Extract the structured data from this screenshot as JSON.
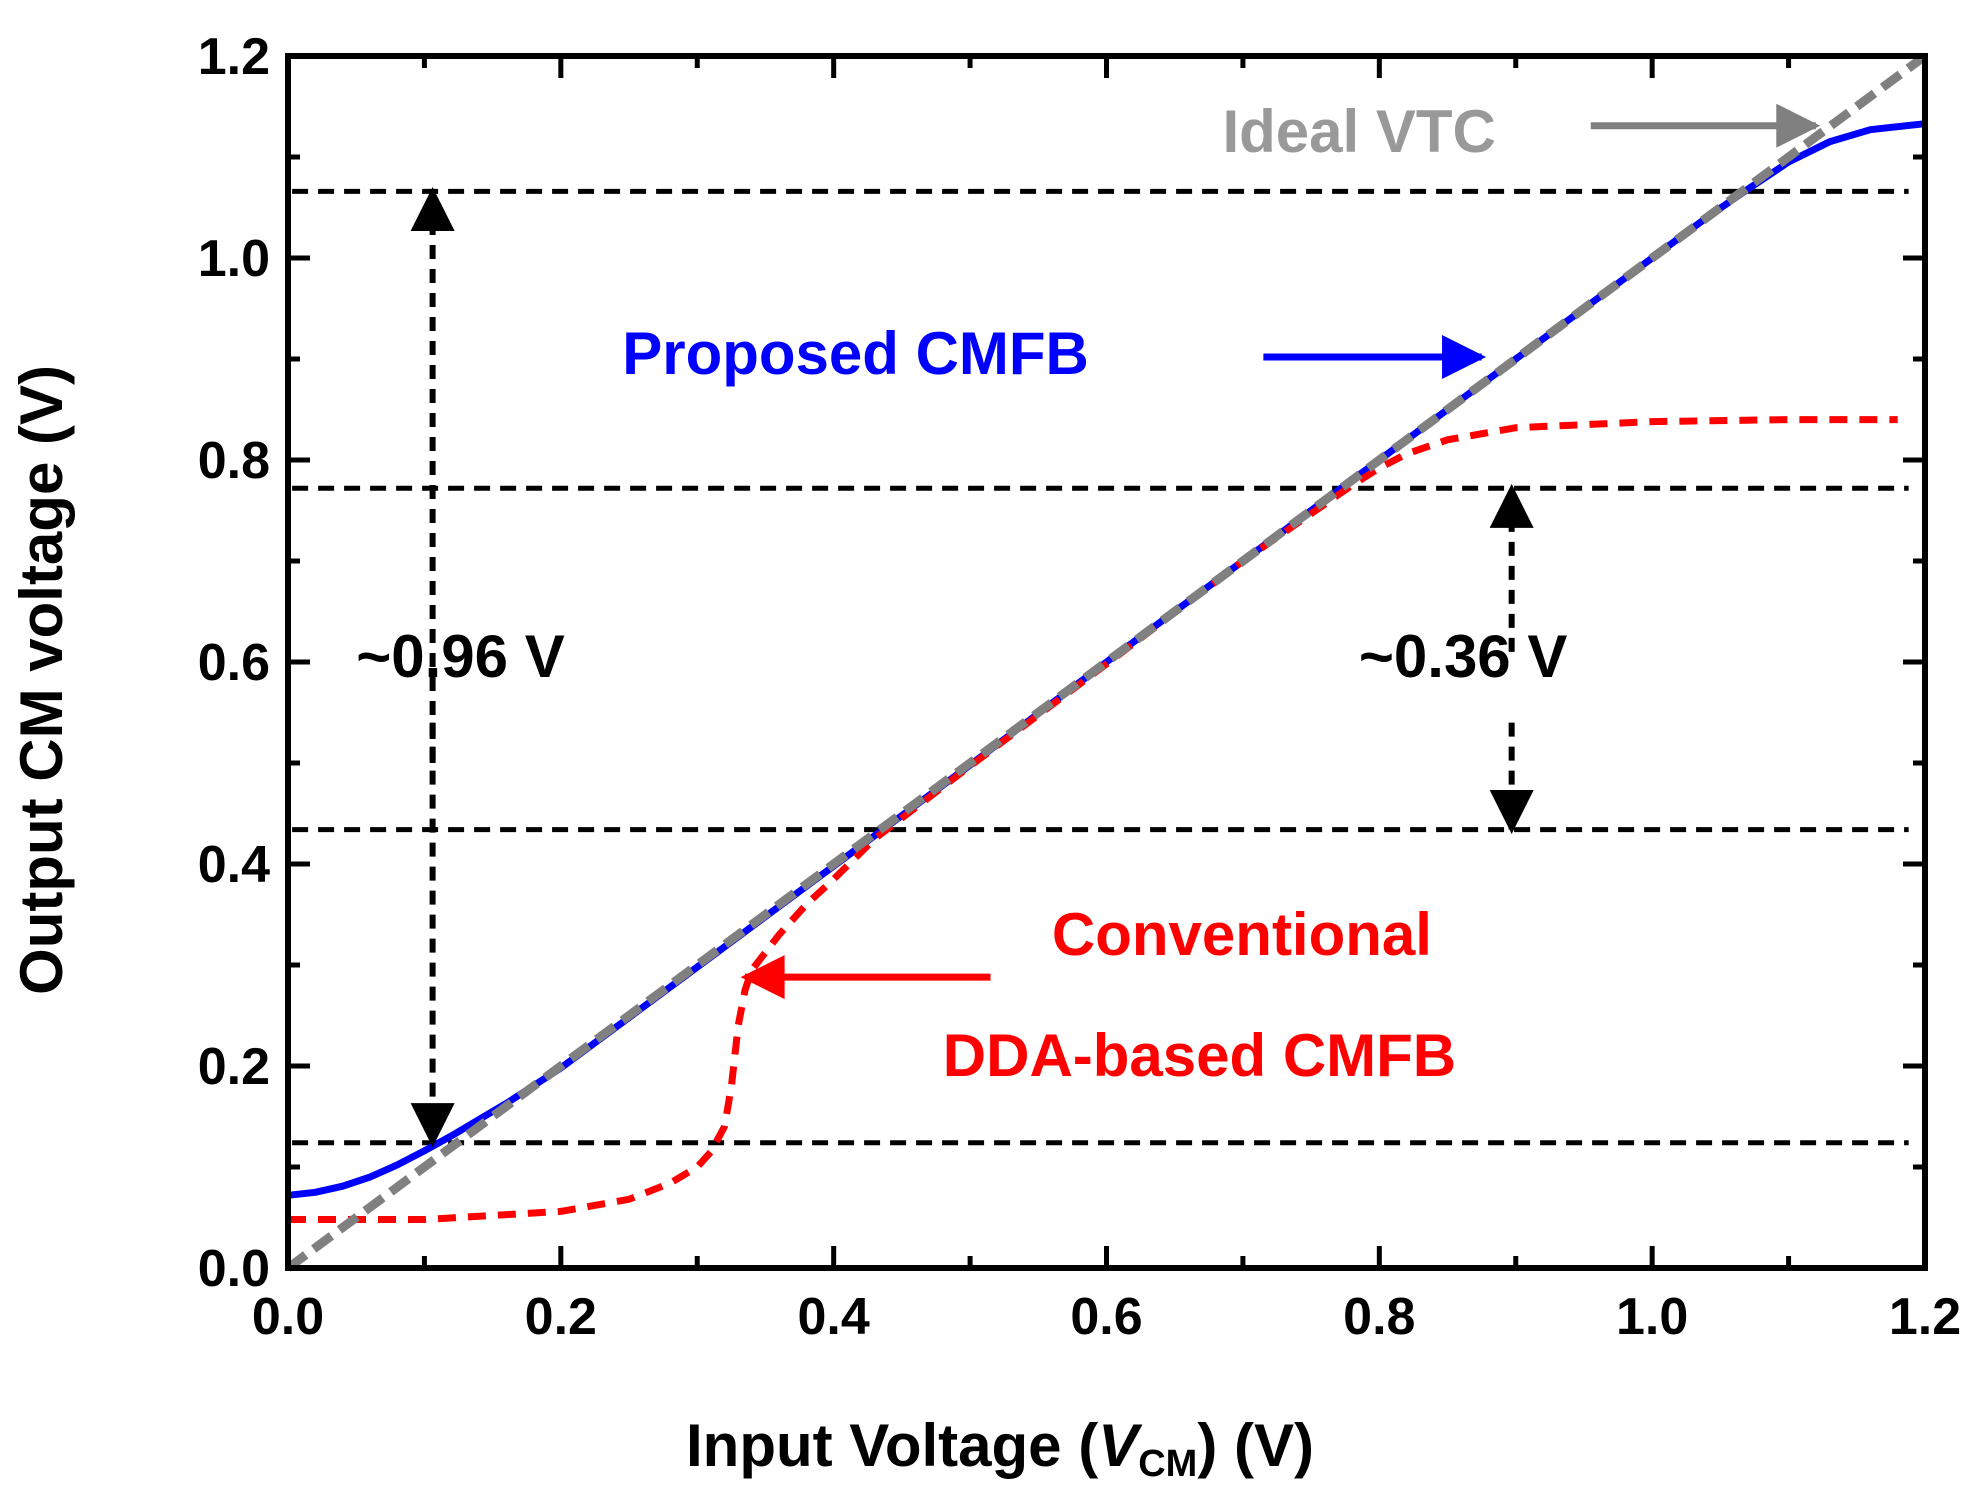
{
  "chart_data": {
    "type": "line",
    "xlabel_parts": {
      "prefix": "Input Voltage (",
      "var": "V",
      "sub": "CM",
      "suffix": ") (V)"
    },
    "ylabel": "Output CM voltage (V)",
    "xlim": [
      0,
      1.2
    ],
    "ylim": [
      0,
      1.2
    ],
    "xticks": [
      "0.0",
      "0.2",
      "0.4",
      "0.6",
      "0.8",
      "1.0",
      "1.2"
    ],
    "yticks": [
      "0.0",
      "0.2",
      "0.4",
      "0.6",
      "0.8",
      "1.0",
      "1.2"
    ],
    "minor_tick_step": 0.1,
    "series": [
      {
        "name": "Proposed CMFB",
        "color": "#0000ff",
        "style": "solid",
        "x": [
          0.0,
          0.02,
          0.04,
          0.06,
          0.08,
          0.1,
          0.12,
          0.14,
          0.16,
          0.2,
          0.3,
          0.4,
          0.5,
          0.6,
          0.7,
          0.8,
          0.9,
          1.0,
          1.04,
          1.07,
          1.1,
          1.13,
          1.16,
          1.2
        ],
        "y": [
          0.072,
          0.075,
          0.081,
          0.09,
          0.102,
          0.116,
          0.131,
          0.147,
          0.163,
          0.198,
          0.298,
          0.398,
          0.498,
          0.6,
          0.7,
          0.8,
          0.9,
          1.0,
          1.04,
          1.068,
          1.095,
          1.115,
          1.127,
          1.133
        ]
      },
      {
        "name": "Conventional DDA-based CMFB",
        "color": "#ff0000",
        "style": "dashed",
        "x": [
          0.0,
          0.1,
          0.2,
          0.25,
          0.28,
          0.3,
          0.31,
          0.32,
          0.325,
          0.33,
          0.335,
          0.34,
          0.36,
          0.38,
          0.4,
          0.43,
          0.5,
          0.6,
          0.7,
          0.78,
          0.8,
          0.82,
          0.85,
          0.9,
          1.0,
          1.1,
          1.18
        ],
        "y": [
          0.048,
          0.048,
          0.056,
          0.068,
          0.084,
          0.1,
          0.115,
          0.14,
          0.18,
          0.24,
          0.275,
          0.295,
          0.33,
          0.36,
          0.385,
          0.425,
          0.497,
          0.598,
          0.7,
          0.775,
          0.792,
          0.806,
          0.82,
          0.832,
          0.838,
          0.84,
          0.84
        ]
      },
      {
        "name": "Ideal VTC",
        "color": "#808080",
        "style": "dashed",
        "x": [
          0.0,
          1.2
        ],
        "y": [
          0.0,
          1.2
        ]
      }
    ],
    "hlines": [
      0.124,
      0.434,
      0.772,
      1.066
    ],
    "annotations": [
      {
        "text": "Ideal VTC",
        "color": "#999999",
        "x": 0.685,
        "y": 1.105
      },
      {
        "text": "Proposed CMFB",
        "color": "#0000ff",
        "x": 0.245,
        "y": 0.885
      },
      {
        "text": "Conventional",
        "color": "#ff0000",
        "x": 0.56,
        "y": 0.31
      },
      {
        "text": "DDA-based  CMFB",
        "color": "#ff0000",
        "x": 0.48,
        "y": 0.19
      },
      {
        "text": "~0.96 V",
        "color": "#000000",
        "x": 0.05,
        "y": 0.585
      },
      {
        "text": "~0.36 V",
        "color": "#000000",
        "x": 0.785,
        "y": 0.585
      }
    ],
    "arrows": [
      {
        "from": [
          0.955,
          1.131
        ],
        "to": [
          1.12,
          1.131
        ],
        "color": "#808080",
        "style": "solid"
      },
      {
        "from": [
          0.715,
          0.902
        ],
        "to": [
          0.875,
          0.902
        ],
        "color": "#0000ff",
        "style": "solid"
      },
      {
        "from": [
          0.515,
          0.288
        ],
        "to": [
          0.335,
          0.288
        ],
        "color": "#ff0000",
        "style": "solid"
      },
      {
        "from": [
          0.106,
          0.5
        ],
        "to": [
          0.106,
          1.066
        ],
        "color": "#000000",
        "style": "dashed"
      },
      {
        "from": [
          0.106,
          0.54
        ],
        "to": [
          0.106,
          0.124
        ],
        "color": "#000000",
        "style": "dashed"
      },
      {
        "from": [
          0.897,
          0.61
        ],
        "to": [
          0.897,
          0.772
        ],
        "color": "#000000",
        "style": "dashed"
      },
      {
        "from": [
          0.897,
          0.54
        ],
        "to": [
          0.897,
          0.434
        ],
        "color": "#000000",
        "style": "dashed"
      }
    ],
    "grid": false,
    "legend": "none"
  }
}
